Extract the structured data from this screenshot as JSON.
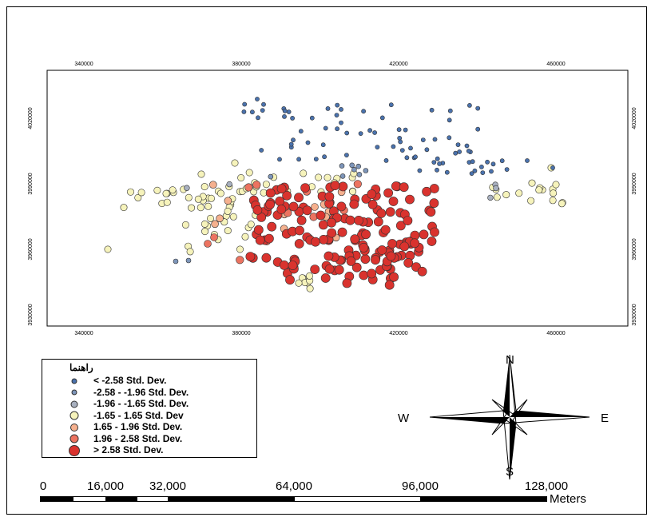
{
  "map": {
    "x_ticks": [
      "340000",
      "380000",
      "420000",
      "460000"
    ],
    "y_ticks": [
      "4020000",
      "3990000",
      "3960000",
      "3930000"
    ],
    "colors": {
      "very_low": "#4a72ad",
      "low": "#7d95b9",
      "mid_low": "#a8b0bf",
      "neutral": "#f6f3bb",
      "mid_high": "#f5b08e",
      "high": "#ec7360",
      "very_high": "#d9332e"
    }
  },
  "legend": {
    "title": "راهنما",
    "items": [
      {
        "label": "< -2.58 Std. Dev.",
        "color": "#4a72ad",
        "size": 7
      },
      {
        "label": "-2.58 - -1.96 Std. Dev.",
        "color": "#7d95b9",
        "size": 7
      },
      {
        "label": "-1.96 - -1.65 Std. Dev.",
        "color": "#a8b0bf",
        "size": 9
      },
      {
        "label": "-1.65 - 1.65 Std. Dev",
        "color": "#f6f3bb",
        "size": 11
      },
      {
        "label": "1.65 - 1.96 Std. Dev.",
        "color": "#f5b08e",
        "size": 10
      },
      {
        "label": "1.96 - 2.58 Std. Dev.",
        "color": "#ec7360",
        "size": 11
      },
      {
        "label": "> 2.58 Std. Dev.",
        "color": "#d9332e",
        "size": 14
      }
    ]
  },
  "north_arrow": {
    "n": "N",
    "s": "S",
    "e": "E",
    "w": "W"
  },
  "scale_bar": {
    "labels": [
      "0",
      "16,000",
      "32,000",
      "64,000",
      "96,000",
      "128,000"
    ],
    "units": "Meters"
  }
}
